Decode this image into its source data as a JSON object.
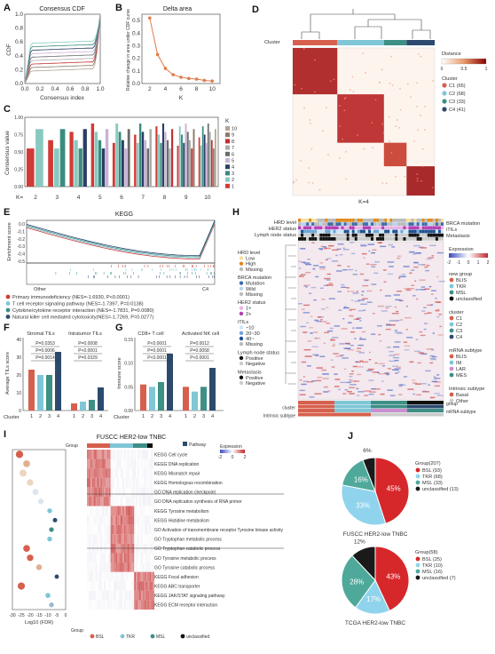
{
  "panel_labels": [
    "A",
    "B",
    "C",
    "D",
    "E",
    "F",
    "G",
    "H",
    "I",
    "J"
  ],
  "A": {
    "title": "Consensus CDF",
    "xlabel": "Consensus index",
    "ylabel": "CDF",
    "xticks": [
      "0.0",
      "0.2",
      "0.4",
      "0.6",
      "0.8",
      "1.0"
    ],
    "yticks": [
      "0.0",
      "0.2",
      "0.4",
      "0.6",
      "0.8",
      "1.0"
    ]
  },
  "B": {
    "title": "Delta area",
    "xlabel": "K",
    "ylabel": "Relative change in area under CDF curve",
    "xticks": [
      "2",
      "4",
      "6",
      "8",
      "10"
    ],
    "yticks": [
      "0.0",
      "0.1",
      "0.2",
      "0.3",
      "0.4",
      "0.5"
    ]
  },
  "C": {
    "ylabel": "Consensus value",
    "kprefix": "K=",
    "legend_title": "K",
    "legend": [
      "10",
      "9",
      "8",
      "7",
      "6",
      "5",
      "4",
      "3",
      "2",
      "1"
    ],
    "legend_colors": [
      "#b0a496",
      "#8c7a6b",
      "#c0302f",
      "#aaaaaa",
      "#6b6b6b",
      "#c9b2d6",
      "#2c3e66",
      "#3a8c7e",
      "#88c9c0",
      "#d13b36"
    ],
    "xticks": [
      "2",
      "3",
      "4",
      "5",
      "6",
      "7",
      "8",
      "9",
      "10"
    ],
    "yticks": [
      "0.00",
      "0.25",
      "0.50",
      "0.75",
      "1.00"
    ]
  },
  "D": {
    "cluster_label": "Cluster",
    "caption": "K=4",
    "legend_distance": "Distance",
    "distance_ticks": [
      "0",
      "0.5",
      "1"
    ],
    "legend_cluster": "Cluster",
    "clusters": [
      {
        "label": "C1 (65)",
        "color": "#d6604d"
      },
      {
        "label": "C2 (68)",
        "color": "#7fc6d6"
      },
      {
        "label": "C3 (33)",
        "color": "#3e8f86"
      },
      {
        "label": "C4 (41)",
        "color": "#2c4a6e"
      }
    ]
  },
  "E": {
    "title": "KEGG",
    "ylabel": "Enrichment score",
    "left": "Other",
    "right": "C4",
    "yticks": [
      "0.0",
      "-0.1",
      "-0.2",
      "-0.3",
      "-0.4",
      "-0.5"
    ],
    "legend": [
      {
        "text": "Primary immunodeficiency (NES=-1.6930, P<0.0001)",
        "color": "#d13b36"
      },
      {
        "text": "T cell receptor signaling pathway (NES=-1.7397, P=0.0138)",
        "color": "#7fc6d6"
      },
      {
        "text": "Cytokine/cytokine receptor interaction (NES=-1.7831, P=0.0080)",
        "color": "#3e8f86"
      },
      {
        "text": "Natural killer cell mediated cytotoxicity(NES=-1.7269, P=0.0277)",
        "color": "#2c4a6e"
      }
    ]
  },
  "F": {
    "ylabel": "Average TILs score",
    "titles": [
      "Stromal TILs",
      "Intratumor TILs"
    ],
    "stats_left": [
      "P=0.0353",
      "P=0.0006",
      "P=0.0014"
    ],
    "stats_right": [
      "P=0.0008",
      "P<0.0001",
      "P=0.0329"
    ],
    "yticks": [
      "0",
      "10",
      "20",
      "30",
      "40"
    ],
    "cluster_label": "Cluster",
    "xticks": [
      "1",
      "2",
      "3",
      "4"
    ]
  },
  "G": {
    "ylabel": "Immune score",
    "titles": [
      "CD8+ T cell",
      "Activated NK cell"
    ],
    "stats_left": [
      "P<0.0001",
      "P=0.0001",
      "P<0.0001"
    ],
    "stats_right": [
      "P=0.0012",
      "P=0.0058",
      "P<0.0001"
    ],
    "yticks": [
      "0.00",
      "0.05",
      "0.10",
      "0.15"
    ],
    "cluster_label": "Cluster",
    "xticks": [
      "1",
      "2",
      "3",
      "4"
    ]
  },
  "H": {
    "top_rows": [
      "HRD level",
      "HER2 status",
      "Lymph node status"
    ],
    "right_rows": [
      "BRCA mutation",
      "iTILs",
      "Metastasis"
    ],
    "expression_title": "Expression",
    "expression_ticks": [
      "-2",
      "-1",
      "0",
      "1",
      "2"
    ],
    "left_legends": [
      {
        "title": "HRD level",
        "items": [
          {
            "t": "Low",
            "c": "#f4dfa0"
          },
          {
            "t": "High",
            "c": "#e08a1e"
          },
          {
            "t": "Missing",
            "c": "#bbbbbb"
          }
        ]
      },
      {
        "title": "BRCA mutation",
        "items": [
          {
            "t": "Mutation",
            "c": "#3e6ca8"
          },
          {
            "t": "Wild",
            "c": "#b8d4ec"
          },
          {
            "t": "Missing",
            "c": "#bbbbbb"
          }
        ]
      },
      {
        "title": "HER2 status",
        "items": [
          {
            "t": "1+",
            "c": "#e8b2e6"
          },
          {
            "t": "2+",
            "c": "#b43fb4"
          }
        ]
      },
      {
        "title": "iTILs",
        "items": [
          {
            "t": "~10",
            "c": "#cfe6f7"
          },
          {
            "t": "20~30",
            "c": "#6aa6d8"
          },
          {
            "t": "40~",
            "c": "#1d4f8f"
          },
          {
            "t": "Missing",
            "c": "#bbbbbb"
          }
        ]
      },
      {
        "title": "Lymph node status",
        "items": [
          {
            "t": "Positive",
            "c": "#111111"
          },
          {
            "t": "Negative",
            "c": "#cccccc"
          }
        ]
      },
      {
        "title": "Metastasis",
        "items": [
          {
            "t": "Positive",
            "c": "#111111"
          },
          {
            "t": "Negative",
            "c": "#cccccc"
          }
        ]
      }
    ],
    "right_legends": [
      {
        "title": "new group",
        "items": [
          {
            "t": "BLIS",
            "c": "#d6604d"
          },
          {
            "t": "TKR",
            "c": "#7fc6d6"
          },
          {
            "t": "MSL",
            "c": "#3e8f86"
          },
          {
            "t": "unclassified",
            "c": "#111111"
          }
        ]
      },
      {
        "title": "cluster",
        "items": [
          {
            "t": "C1",
            "c": "#d6604d"
          },
          {
            "t": "C2",
            "c": "#7fc6d6"
          },
          {
            "t": "C3",
            "c": "#3e8f86"
          },
          {
            "t": "C4",
            "c": "#2c4a6e"
          }
        ]
      },
      {
        "title": "mRNA subtype",
        "items": [
          {
            "t": "BLIS",
            "c": "#d6604d"
          },
          {
            "t": "IM",
            "c": "#7fc6d6"
          },
          {
            "t": "LAR",
            "c": "#c98fd1"
          },
          {
            "t": "MES",
            "c": "#3e8f86"
          }
        ]
      },
      {
        "title": "Intrinsic subtype",
        "items": [
          {
            "t": "Basal",
            "c": "#d6604d"
          },
          {
            "t": "Other",
            "c": "#cccccc"
          }
        ]
      }
    ],
    "bottom_rows": [
      "group",
      "cluster",
      "mRNA subtype",
      "Intrinsic subtype"
    ]
  },
  "I": {
    "title": "FUSCC HER2-low TNBC",
    "group_label": "Group",
    "pathway_label": "Pathway",
    "expression_title": "Expression",
    "expression_ticks": [
      "-2",
      "0",
      "2"
    ],
    "xlabel": "Log10 (FDR)",
    "xticks": [
      "-30",
      "-25",
      "-20",
      "-15",
      "-10",
      "-5",
      "0"
    ],
    "pathways": [
      "KEGG Cell cycle",
      "KEGG DNA replication",
      "KEGG Mismatch repair",
      "KEGG Homologous recombination",
      "GO DNA replication checkpoint",
      "GO DNA replication synthesis of RNA primer",
      "KEGG Tyrosine metabolism",
      "KEGG Histidine metabolism",
      "GO Activation of transmembrane receptor Tyrosine kinase activity",
      "GO Tryptophan metabolic process",
      "GO Tryptophan catabolic process",
      "GO Tyrosine metabolic process",
      "GO Tyrosine catabolic process",
      "KEGG Focal adhesion",
      "KEGG ABC transporter",
      "KEGG JAK/STAT signaling pathway",
      "KEGG ECM receptor interaction"
    ],
    "fdr": [
      -26,
      -22,
      -24,
      -20,
      -17,
      -14,
      -9,
      -6,
      -8,
      -9,
      -22,
      -20,
      -15,
      -5,
      -25,
      -10,
      -8
    ],
    "dot_colors": [
      "#d6604d",
      "#e0b090",
      "#ecd6c0",
      "#ecd6c0",
      "#dde6ef",
      "#dde6ef",
      "#7fc6d6",
      "#2c4a6e",
      "#3e8f86",
      "#7fc6d6",
      "#d6604d",
      "#d6604d",
      "#e0b090",
      "#2c4a6e",
      "#d6604d",
      "#7fc6d6",
      "#9ab8d0"
    ],
    "legend_title": "Group",
    "legend": [
      {
        "t": "BSL",
        "c": "#d6604d"
      },
      {
        "t": "TKR",
        "c": "#7fc6d6"
      },
      {
        "t": "MSL",
        "c": "#3e8f86"
      },
      {
        "t": "unclassified",
        "c": "#111111"
      }
    ]
  },
  "J": {
    "pies": [
      {
        "caption": "FUSCC HER2-low TNBC",
        "group_title": "Group(207)",
        "items": [
          {
            "t": "BSL (93)",
            "c": "#d6272b"
          },
          {
            "t": "TKR (68)",
            "c": "#8fd4ec"
          },
          {
            "t": "MSL (33)",
            "c": "#4ea99a"
          },
          {
            "t": "unclassified (13)",
            "c": "#1a1a1a"
          }
        ],
        "values": [
          45,
          33,
          16,
          6
        ],
        "labels": [
          "45%",
          "33%",
          "16%",
          "6%"
        ]
      },
      {
        "caption": "TCGA HER2-low TNBC",
        "group_title": "Group(58)",
        "items": [
          {
            "t": "BSL (25)",
            "c": "#d6272b"
          },
          {
            "t": "TKR (10)",
            "c": "#8fd4ec"
          },
          {
            "t": "MSL (16)",
            "c": "#4ea99a"
          },
          {
            "t": "unclassified (7)",
            "c": "#1a1a1a"
          }
        ],
        "values": [
          43,
          17,
          28,
          12
        ],
        "labels": [
          "43%",
          "17%",
          "28%",
          "12%"
        ]
      }
    ]
  },
  "chart_data": [
    {
      "type": "line",
      "title": "Delta area",
      "xlabel": "K",
      "ylabel": "Relative change in area under CDF curve",
      "x": [
        2,
        3,
        4,
        5,
        6,
        7,
        8,
        9,
        10
      ],
      "values": [
        0.52,
        0.23,
        0.12,
        0.07,
        0.05,
        0.04,
        0.035,
        0.025,
        0.02
      ],
      "ylim": [
        0,
        0.55
      ]
    },
    {
      "type": "bar",
      "title": "Stromal TILs",
      "ylabel": "Average TILs score",
      "categories": [
        "1",
        "2",
        "3",
        "4"
      ],
      "values": [
        23,
        20,
        20,
        33
      ],
      "ylim": [
        0,
        40
      ]
    },
    {
      "type": "bar",
      "title": "Intratumor TILs",
      "ylabel": "Average TILs score",
      "categories": [
        "1",
        "2",
        "3",
        "4"
      ],
      "values": [
        4,
        5,
        6,
        13
      ],
      "ylim": [
        0,
        40
      ]
    },
    {
      "type": "bar",
      "title": "CD8+ T cell",
      "ylabel": "Immune score",
      "categories": [
        "1",
        "2",
        "3",
        "4"
      ],
      "values": [
        0.055,
        0.05,
        0.06,
        0.12
      ],
      "ylim": [
        0,
        0.15
      ]
    },
    {
      "type": "bar",
      "title": "Activated NK cell",
      "ylabel": "Immune score",
      "categories": [
        "1",
        "2",
        "3",
        "4"
      ],
      "values": [
        0.05,
        0.04,
        0.05,
        0.09
      ],
      "ylim": [
        0,
        0.15
      ]
    },
    {
      "type": "pie",
      "title": "FUSCC HER2-low TNBC",
      "categories": [
        "BSL",
        "TKR",
        "MSL",
        "unclassified"
      ],
      "values": [
        45,
        33,
        16,
        6
      ]
    },
    {
      "type": "pie",
      "title": "TCGA HER2-low TNBC",
      "categories": [
        "BSL",
        "TKR",
        "MSL",
        "unclassified"
      ],
      "values": [
        43,
        17,
        28,
        12
      ]
    }
  ]
}
